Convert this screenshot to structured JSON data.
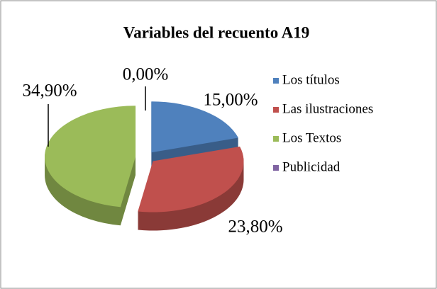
{
  "chart_data": {
    "type": "pie3d",
    "title": "Variables del recuento A19",
    "categories": [
      "Los títulos",
      "Las ilustraciones",
      "Los Textos",
      "Publicidad"
    ],
    "values": [
      15.0,
      23.8,
      34.9,
      0.0
    ],
    "value_labels": [
      "15,00%",
      "23,80%",
      "34,90%",
      "0,00%"
    ],
    "colors": [
      "#4f81bd",
      "#c0504d",
      "#9bbb59",
      "#8064a2"
    ],
    "legend": "right"
  }
}
